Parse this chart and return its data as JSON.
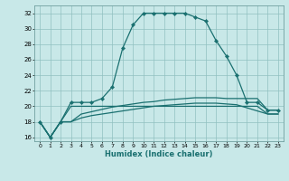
{
  "title": "",
  "xlabel": "Humidex (Indice chaleur)",
  "background_color": "#c8e8e8",
  "grid_color": "#90c0c0",
  "line_color": "#1a7070",
  "xlim": [
    -0.5,
    23.5
  ],
  "ylim": [
    15.5,
    33
  ],
  "yticks": [
    16,
    18,
    20,
    22,
    24,
    26,
    28,
    30,
    32
  ],
  "xticks": [
    0,
    1,
    2,
    3,
    4,
    5,
    6,
    7,
    8,
    9,
    10,
    11,
    12,
    13,
    14,
    15,
    16,
    17,
    18,
    19,
    20,
    21,
    22,
    23
  ],
  "main_y": [
    18,
    16,
    18,
    20.5,
    20.5,
    20.5,
    21,
    22.5,
    27.5,
    30.5,
    32,
    32,
    32,
    32,
    32,
    31.5,
    31,
    28.5,
    26.5,
    24,
    20.5,
    20.5,
    19.5,
    19.5
  ],
  "flat_y": [
    18,
    16,
    18,
    20,
    20,
    20,
    20,
    20,
    20,
    20,
    20,
    20,
    20,
    20,
    20,
    20,
    20,
    20,
    20,
    20,
    20,
    20,
    19,
    19
  ],
  "diag1_y": [
    18,
    16,
    18,
    18,
    18.5,
    18.8,
    19.0,
    19.2,
    19.4,
    19.6,
    19.8,
    20.0,
    20.1,
    20.2,
    20.3,
    20.4,
    20.4,
    20.4,
    20.3,
    20.2,
    19.8,
    19.4,
    19.0,
    19.0
  ],
  "diag2_y": [
    18,
    16,
    18,
    18,
    19.0,
    19.3,
    19.6,
    19.9,
    20.1,
    20.3,
    20.5,
    20.6,
    20.8,
    20.9,
    21.0,
    21.1,
    21.1,
    21.1,
    21.0,
    21.0,
    21.0,
    21.0,
    19.5,
    19.5
  ]
}
